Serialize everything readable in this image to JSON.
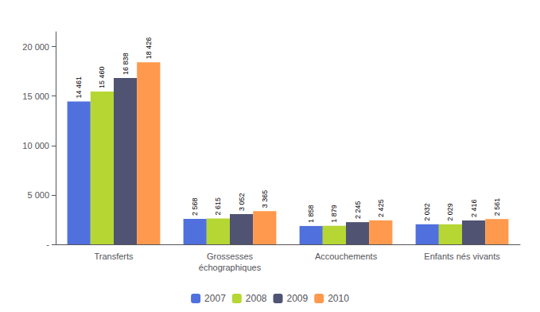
{
  "chart_data": {
    "type": "bar",
    "categories": [
      "Transferts",
      "Grossesses\néchographiques",
      "Accouchements",
      "Enfants nés vivants"
    ],
    "series": [
      {
        "name": "2007",
        "values": [
          14461,
          2568,
          1858,
          2032
        ],
        "value_labels": [
          "14 461",
          "2 568",
          "1 858",
          "2 032"
        ]
      },
      {
        "name": "2008",
        "values": [
          15460,
          2615,
          1879,
          2029
        ],
        "value_labels": [
          "15 460",
          "2 615",
          "1 879",
          "2 029"
        ]
      },
      {
        "name": "2009",
        "values": [
          16838,
          3052,
          2245,
          2416
        ],
        "value_labels": [
          "16 838",
          "3 052",
          "2 245",
          "2 416"
        ]
      },
      {
        "name": "2010",
        "values": [
          18426,
          3365,
          2425,
          2561
        ],
        "value_labels": [
          "18 426",
          "3 365",
          "2 425",
          "2 561"
        ]
      }
    ],
    "ylim": [
      0,
      21500
    ],
    "yticks": [
      {
        "value": 0,
        "label": "-"
      },
      {
        "value": 5000,
        "label": "5 000"
      },
      {
        "value": 10000,
        "label": "10 000"
      },
      {
        "value": 15000,
        "label": "15 000"
      },
      {
        "value": 20000,
        "label": "20 000"
      }
    ],
    "data_labels": true,
    "legend": "bottom",
    "grid": false
  }
}
